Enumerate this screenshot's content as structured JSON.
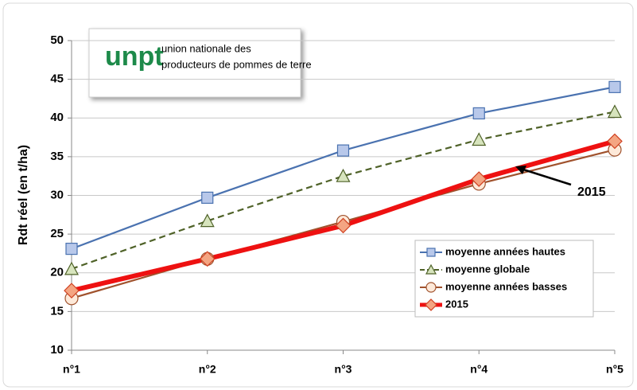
{
  "logo": {
    "mark": "unpt",
    "lines": [
      "union nationale des",
      "producteurs de pommes de terre"
    ]
  },
  "chart_data": {
    "type": "line",
    "y_label": "Rdt réel (en t/ha)",
    "categories": [
      "n°1",
      "n°2",
      "n°3",
      "n°4",
      "n°5"
    ],
    "ylim": [
      10,
      50
    ],
    "yticks": [
      10,
      15,
      20,
      25,
      30,
      35,
      40,
      45,
      50
    ],
    "grid": true,
    "legend": "bottom-right",
    "annotation": "2015",
    "series": [
      {
        "name": "moyenne années hautes",
        "color": "#4a72b0",
        "marker": "square",
        "values": [
          23.1,
          29.7,
          35.8,
          40.6,
          44.0
        ]
      },
      {
        "name": "moyenne globale",
        "color": "#4f6228",
        "marker": "triangle",
        "dashed": true,
        "values": [
          20.5,
          26.7,
          32.5,
          37.2,
          40.8
        ]
      },
      {
        "name": "moyenne années basses",
        "color": "#a0522d",
        "marker": "circle",
        "values": [
          16.7,
          21.8,
          26.6,
          31.5,
          35.9
        ]
      },
      {
        "name": "2015",
        "color": "#ee1111",
        "marker": "diamond",
        "thick": true,
        "values": [
          17.7,
          21.8,
          26.1,
          32.1,
          37.0
        ]
      }
    ]
  }
}
